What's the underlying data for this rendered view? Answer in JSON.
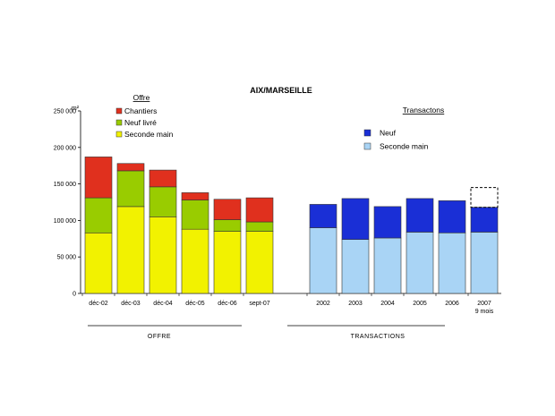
{
  "chart_data": {
    "type": "bar",
    "stacked": true,
    "title": "AIX/MARSEILLE",
    "y_unit": "m²",
    "ylim": [
      0,
      250000
    ],
    "y_ticks": [
      "0",
      "50 000",
      "100 000",
      "150 000",
      "200 000",
      "250 000"
    ],
    "grid": false,
    "offre": {
      "legend_title": "Offre",
      "group_label": "OFFRE",
      "categories": [
        "déc-02",
        "déc-03",
        "déc-04",
        "déc-05",
        "déc-06",
        "sept-07"
      ],
      "series": [
        {
          "name": "Seconde main",
          "color": "#f2f200",
          "values": [
            83000,
            119000,
            105000,
            88000,
            85000,
            85000
          ]
        },
        {
          "name": "Neuf livré",
          "color": "#99cc00",
          "values": [
            48000,
            49000,
            41000,
            40000,
            16000,
            13000
          ]
        },
        {
          "name": "Chantiers",
          "color": "#e0301e",
          "values": [
            56000,
            10000,
            23000,
            10000,
            28000,
            33000
          ]
        }
      ],
      "legend_order": [
        "Chantiers",
        "Neuf livré",
        "Seconde main"
      ]
    },
    "transactions": {
      "legend_title": "Transactons",
      "group_label": "TRANSACTIONS",
      "categories": [
        "2002",
        "2003",
        "2004",
        "2005",
        "2006",
        [
          "2007",
          "9 mois"
        ]
      ],
      "series": [
        {
          "name": "Seconde main",
          "color": "#a9d4f5",
          "values": [
            90000,
            74000,
            76000,
            84000,
            83000,
            84000
          ]
        },
        {
          "name": "Neuf",
          "color": "#1a2fd6",
          "values": [
            32000,
            56000,
            43000,
            46000,
            44000,
            34000
          ]
        }
      ],
      "legend_order": [
        "Neuf",
        "Seconde main"
      ],
      "projection": {
        "category_index": 5,
        "from": 118000,
        "to": 145000
      }
    }
  }
}
